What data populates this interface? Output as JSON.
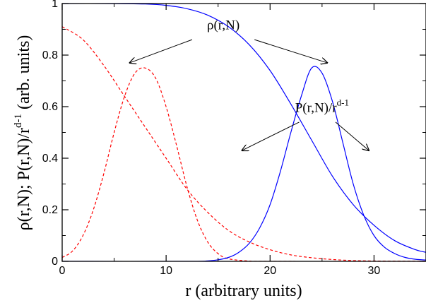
{
  "chart_data": {
    "type": "line",
    "title": "",
    "xlabel": "r (arbitrary units)",
    "ylabel": "ρ(r,N);  P(r,N)/r",
    "ylabel_superscript": "d-1",
    "ylabel_suffix": "  (arb. units)",
    "xlim": [
      0,
      35
    ],
    "ylim": [
      0,
      1
    ],
    "xticks": [
      0,
      10,
      20,
      30
    ],
    "yticks": [
      0,
      0.2,
      0.4,
      0.6,
      0.8,
      1
    ],
    "xtick_labels": [
      "0",
      "10",
      "20",
      "30"
    ],
    "ytick_labels": [
      "0",
      "0.2",
      "0.4",
      "0.6",
      "0.8",
      "1"
    ],
    "grid": false,
    "legend": "none",
    "colors": {
      "red": "#ff0000",
      "blue": "#0000ff"
    },
    "series": [
      {
        "color": "#ff0000",
        "style": "dashed",
        "x": [
          0,
          2,
          4,
          6,
          8,
          10,
          12,
          14,
          16,
          18,
          20,
          22,
          24,
          26,
          28,
          30,
          32,
          34,
          35
        ],
        "y": [
          0.91,
          0.86,
          0.76,
          0.64,
          0.52,
          0.4,
          0.28,
          0.19,
          0.12,
          0.075,
          0.045,
          0.025,
          0.014,
          0.007,
          0.003,
          0.0015,
          0.0007,
          0.0003,
          0.0002
        ]
      },
      {
        "color": "#ff0000",
        "style": "dashed",
        "x": [
          0,
          1,
          2,
          3,
          4,
          5,
          6,
          7,
          8,
          9,
          10,
          11,
          12,
          13,
          14,
          15,
          16,
          18,
          20,
          35
        ],
        "y": [
          0.015,
          0.04,
          0.1,
          0.2,
          0.34,
          0.5,
          0.64,
          0.73,
          0.75,
          0.71,
          0.6,
          0.45,
          0.29,
          0.16,
          0.075,
          0.03,
          0.01,
          0.001,
          0.0,
          0.0
        ]
      },
      {
        "color": "#0000ff",
        "style": "solid",
        "x": [
          0,
          4,
          8,
          10,
          12,
          14,
          16,
          18,
          20,
          22,
          24,
          26,
          28,
          30,
          32,
          34,
          35
        ],
        "y": [
          1.0,
          1.0,
          0.998,
          0.993,
          0.98,
          0.955,
          0.91,
          0.84,
          0.74,
          0.61,
          0.47,
          0.33,
          0.22,
          0.14,
          0.08,
          0.045,
          0.035
        ]
      },
      {
        "color": "#0000ff",
        "style": "solid",
        "x": [
          0,
          12,
          14,
          15,
          16,
          17,
          18,
          19,
          20,
          21,
          22,
          23,
          24,
          25,
          26,
          27,
          28,
          29,
          30,
          31,
          32,
          33,
          34,
          35
        ],
        "y": [
          0.0,
          0.0,
          0.002,
          0.006,
          0.015,
          0.035,
          0.07,
          0.13,
          0.22,
          0.35,
          0.5,
          0.64,
          0.75,
          0.73,
          0.62,
          0.46,
          0.3,
          0.18,
          0.1,
          0.055,
          0.03,
          0.015,
          0.008,
          0.005
        ]
      }
    ],
    "annotations": [
      {
        "text": "ρ(r,N)",
        "superscript": "",
        "text_anchor": [
          15.5,
          0.9
        ],
        "arrows": [
          {
            "from": [
              12.5,
              0.86
            ],
            "to": [
              6.5,
              0.77
            ]
          },
          {
            "from": [
              18.5,
              0.86
            ],
            "to": [
              25.5,
              0.77
            ]
          }
        ]
      },
      {
        "text": "P(r,N)/r",
        "superscript": "d-1",
        "text_anchor": [
          25,
          0.58
        ],
        "arrows": [
          {
            "from": [
              22.8,
              0.54
            ],
            "to": [
              17.3,
              0.43
            ]
          },
          {
            "from": [
              26.3,
              0.54
            ],
            "to": [
              29.5,
              0.43
            ]
          }
        ]
      }
    ]
  }
}
